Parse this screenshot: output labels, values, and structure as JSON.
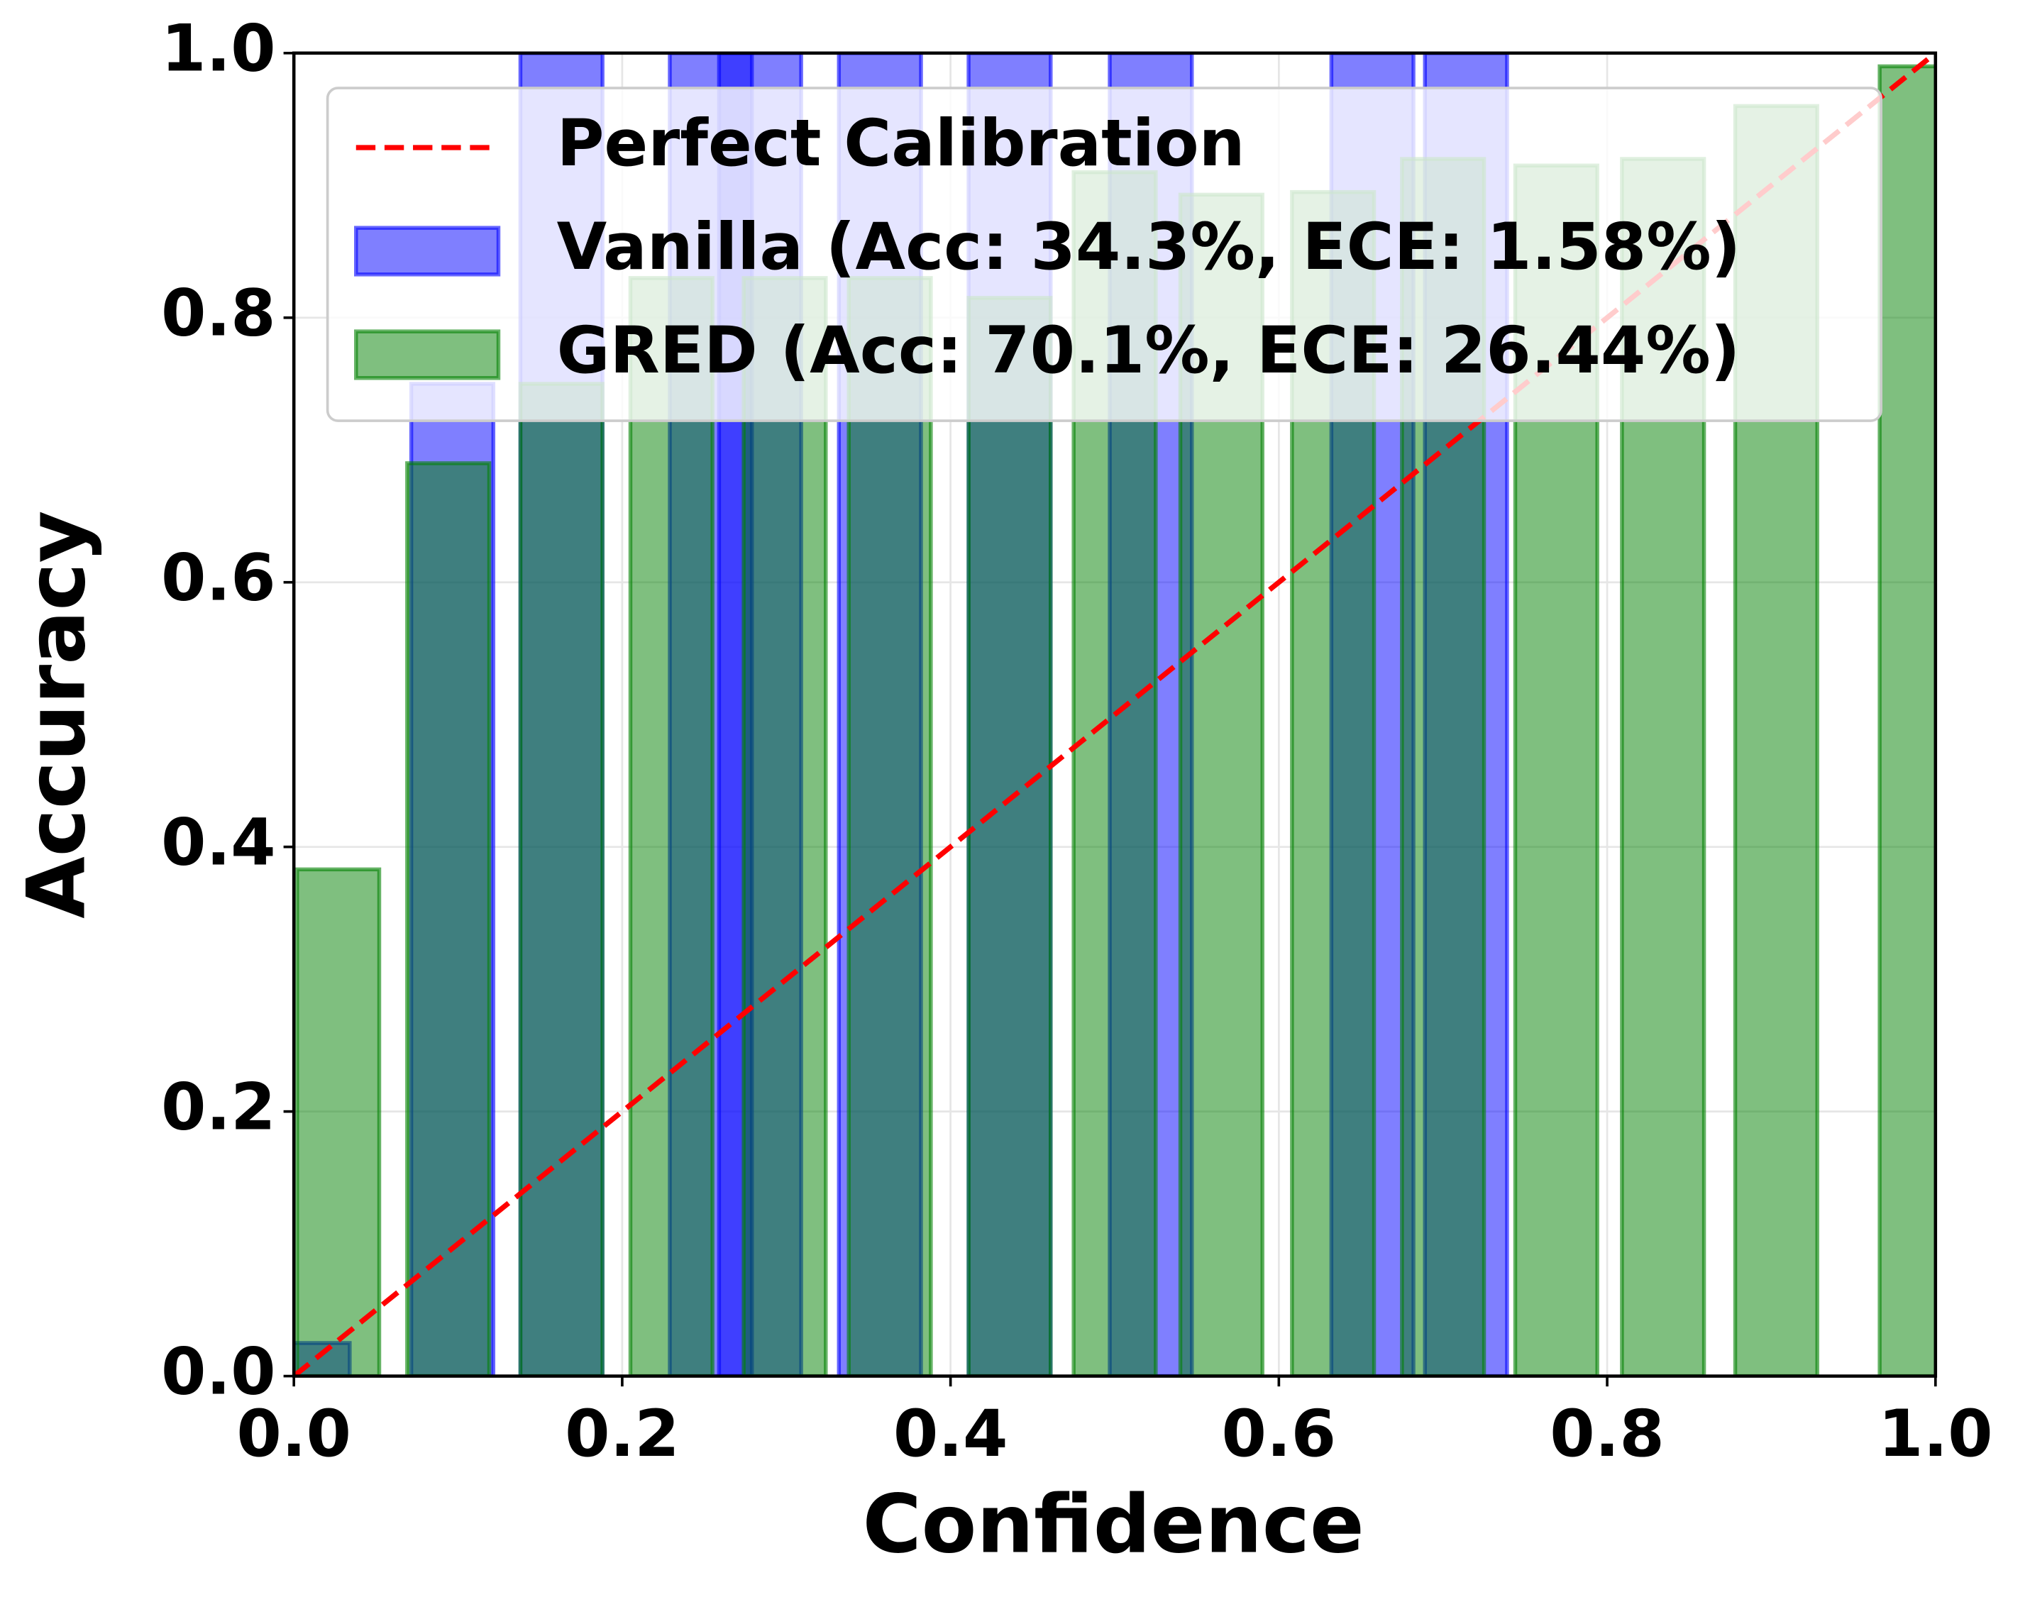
{
  "chart_data": {
    "type": "bar",
    "xlabel": "Confidence",
    "ylabel": "Accuracy",
    "xlim": [
      0,
      1
    ],
    "ylim": [
      0,
      1
    ],
    "xticks": [
      {
        "value": 0,
        "label": "0.0"
      },
      0.2,
      0.4,
      0.6,
      0.8,
      {
        "value": 1,
        "label": "1.0"
      }
    ],
    "yticks": [
      {
        "value": 0,
        "label": "0.0"
      },
      0.2,
      0.4,
      0.6,
      0.8,
      {
        "value": 1,
        "label": "1.0"
      }
    ],
    "grid": true,
    "legend": "upper left",
    "bar_width": 0.05,
    "reference_line": {
      "name": "Perfect Calibration",
      "color": "#ff0000",
      "x": [
        0,
        1
      ],
      "values": [
        0,
        1
      ]
    },
    "series": [
      {
        "name": "Vanilla (Acc: 34.3%, ECE: 1.58%)",
        "color": "#0000ff",
        "x": [
          0.009,
          0.0965,
          0.163,
          0.254,
          0.284,
          0.357,
          0.436,
          0.522,
          0.657,
          0.714
        ],
        "values": [
          0.025,
          0.75,
          1.0,
          1.0,
          1.0,
          1.0,
          1.0,
          1.0,
          1.0,
          1.0
        ]
      },
      {
        "name": "GRED (Acc: 70.1%, ECE: 26.44%)",
        "color": "#008000",
        "x": [
          0.027,
          0.094,
          0.163,
          0.23,
          0.299,
          0.363,
          0.436,
          0.5,
          0.565,
          0.633,
          0.7,
          0.769,
          0.834,
          0.903,
          0.991
        ],
        "values": [
          0.383,
          0.69,
          0.75,
          0.83,
          0.83,
          0.83,
          0.815,
          0.91,
          0.893,
          0.895,
          0.92,
          0.915,
          0.92,
          0.96,
          0.99
        ]
      }
    ]
  }
}
